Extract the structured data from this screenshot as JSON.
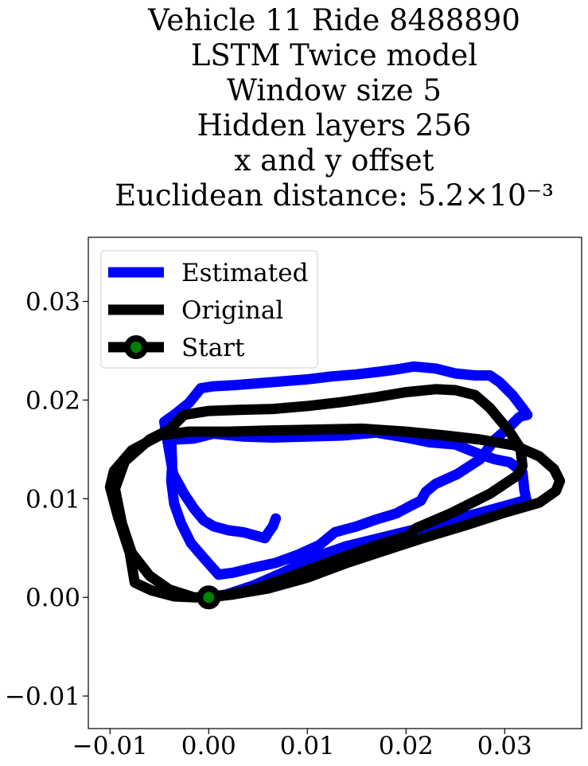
{
  "chart_data": {
    "type": "line",
    "title_lines": [
      "Vehicle 11 Ride 8488890",
      "LSTM Twice model",
      "Window size 5",
      "Hidden layers 256",
      "x and y offset",
      "Euclidean distance: 5.2×10⁻³"
    ],
    "xlabel": "",
    "ylabel": "",
    "xlim": [
      -0.0122,
      0.0378
    ],
    "ylim": [
      -0.0133,
      0.0365
    ],
    "xticks": [
      -0.01,
      0.0,
      0.01,
      0.02,
      0.03
    ],
    "xtick_labels": [
      "−0.01",
      "0.00",
      "0.01",
      "0.02",
      "0.03"
    ],
    "yticks": [
      -0.01,
      0.0,
      0.01,
      0.02,
      0.03
    ],
    "ytick_labels": [
      "−0.01",
      "0.00",
      "0.01",
      "0.02",
      "0.03"
    ],
    "grid": false,
    "legend_position": "upper-left",
    "series": [
      {
        "name": "Estimated",
        "color": "#0000ff",
        "points": [
          [
            0.0,
            0.0
          ],
          [
            0.0018,
            0.0003
          ],
          [
            0.0045,
            0.0012
          ],
          [
            0.0075,
            0.0025
          ],
          [
            0.0105,
            0.004
          ],
          [
            0.014,
            0.0052
          ],
          [
            0.0185,
            0.0063
          ],
          [
            0.023,
            0.0074
          ],
          [
            0.0272,
            0.0085
          ],
          [
            0.0305,
            0.0094
          ],
          [
            0.0322,
            0.0099
          ],
          [
            0.032,
            0.0108
          ],
          [
            0.0318,
            0.0127
          ],
          [
            0.0305,
            0.0137
          ],
          [
            0.029,
            0.014
          ],
          [
            0.0275,
            0.0145
          ],
          [
            0.025,
            0.0155
          ],
          [
            0.0225,
            0.0157
          ],
          [
            0.02,
            0.0162
          ],
          [
            0.017,
            0.0167
          ],
          [
            0.0135,
            0.0164
          ],
          [
            0.01,
            0.0163
          ],
          [
            0.0065,
            0.0162
          ],
          [
            0.0035,
            0.0163
          ],
          [
            0.0005,
            0.0166
          ],
          [
            -0.0015,
            0.0161
          ],
          [
            -0.0033,
            0.016
          ],
          [
            -0.0038,
            0.0159
          ],
          [
            -0.0037,
            0.0135
          ],
          [
            -0.0038,
            0.0118
          ],
          [
            -0.0035,
            0.0095
          ],
          [
            -0.0028,
            0.0075
          ],
          [
            -0.0018,
            0.0055
          ],
          [
            -0.0005,
            0.004
          ],
          [
            0.001,
            0.0023
          ],
          [
            0.0025,
            0.0025
          ],
          [
            0.0045,
            0.003
          ],
          [
            0.0068,
            0.0035
          ],
          [
            0.009,
            0.0043
          ],
          [
            0.0112,
            0.0053
          ],
          [
            0.0128,
            0.0066
          ],
          [
            0.015,
            0.0072
          ],
          [
            0.017,
            0.0079
          ],
          [
            0.019,
            0.0085
          ],
          [
            0.0205,
            0.0093
          ],
          [
            0.0215,
            0.0098
          ],
          [
            0.022,
            0.0107
          ],
          [
            0.023,
            0.0115
          ],
          [
            0.0252,
            0.0125
          ],
          [
            0.0275,
            0.014
          ],
          [
            0.029,
            0.016
          ],
          [
            0.0305,
            0.0173
          ],
          [
            0.0315,
            0.0183
          ],
          [
            0.0323,
            0.0185
          ],
          [
            0.0318,
            0.0192
          ],
          [
            0.0308,
            0.0205
          ],
          [
            0.0295,
            0.0218
          ],
          [
            0.0285,
            0.0225
          ],
          [
            0.027,
            0.0225
          ],
          [
            0.025,
            0.0227
          ],
          [
            0.023,
            0.0232
          ],
          [
            0.0208,
            0.0234
          ],
          [
            0.019,
            0.0231
          ],
          [
            0.0175,
            0.0229
          ],
          [
            0.015,
            0.0226
          ],
          [
            0.0125,
            0.0224
          ],
          [
            0.01,
            0.0221
          ],
          [
            0.0075,
            0.0219
          ],
          [
            0.005,
            0.0217
          ],
          [
            0.0025,
            0.0215
          ],
          [
            0.0005,
            0.0214
          ],
          [
            -0.0008,
            0.0212
          ],
          [
            -0.002,
            0.0197
          ],
          [
            -0.0035,
            0.0185
          ],
          [
            -0.0045,
            0.0178
          ],
          [
            -0.0042,
            0.016
          ],
          [
            -0.0036,
            0.0125
          ],
          [
            -0.0025,
            0.0105
          ],
          [
            -0.0015,
            0.009
          ],
          [
            -0.0005,
            0.0078
          ],
          [
            0.0005,
            0.0072
          ],
          [
            0.002,
            0.0068
          ],
          [
            0.0035,
            0.0066
          ],
          [
            0.0057,
            0.006
          ],
          [
            0.006,
            0.0065
          ],
          [
            0.0065,
            0.0072
          ],
          [
            0.0068,
            0.008
          ]
        ]
      },
      {
        "name": "Original",
        "color": "#000000",
        "points": [
          [
            0.0,
            0.0
          ],
          [
            0.0025,
            0.0003
          ],
          [
            0.006,
            0.0009
          ],
          [
            0.01,
            0.002
          ],
          [
            0.014,
            0.0035
          ],
          [
            0.018,
            0.0048
          ],
          [
            0.022,
            0.0061
          ],
          [
            0.026,
            0.0073
          ],
          [
            0.03,
            0.0086
          ],
          [
            0.0335,
            0.0096
          ],
          [
            0.0352,
            0.0108
          ],
          [
            0.0356,
            0.0118
          ],
          [
            0.035,
            0.013
          ],
          [
            0.0335,
            0.0143
          ],
          [
            0.031,
            0.0154
          ],
          [
            0.0275,
            0.016
          ],
          [
            0.024,
            0.0164
          ],
          [
            0.02,
            0.0168
          ],
          [
            0.0155,
            0.0171
          ],
          [
            0.0105,
            0.017
          ],
          [
            0.006,
            0.0169
          ],
          [
            0.002,
            0.0168
          ],
          [
            -0.002,
            0.0168
          ],
          [
            -0.005,
            0.0164
          ],
          [
            -0.0078,
            0.0149
          ],
          [
            -0.0096,
            0.0128
          ],
          [
            -0.01,
            0.0112
          ],
          [
            -0.0092,
            0.0082
          ],
          [
            -0.008,
            0.0045
          ],
          [
            -0.0075,
            0.0015
          ],
          [
            -0.0058,
            0.0007
          ],
          [
            -0.0035,
            0.0001
          ],
          [
            -0.0013,
            0.0
          ],
          [
            0.0015,
            0.0002
          ],
          [
            0.0045,
            0.0008
          ],
          [
            0.0085,
            0.0022
          ],
          [
            0.0125,
            0.0037
          ],
          [
            0.0165,
            0.0051
          ],
          [
            0.0203,
            0.0063
          ],
          [
            0.021,
            0.007
          ],
          [
            0.0245,
            0.0085
          ],
          [
            0.0285,
            0.0105
          ],
          [
            0.0312,
            0.0123
          ],
          [
            0.0318,
            0.0133
          ],
          [
            0.0316,
            0.0151
          ],
          [
            0.0305,
            0.0168
          ],
          [
            0.0285,
            0.0192
          ],
          [
            0.027,
            0.0205
          ],
          [
            0.025,
            0.021
          ],
          [
            0.023,
            0.0211
          ],
          [
            0.02,
            0.0208
          ],
          [
            0.017,
            0.0203
          ],
          [
            0.0135,
            0.0198
          ],
          [
            0.01,
            0.0194
          ],
          [
            0.0065,
            0.0191
          ],
          [
            0.003,
            0.019
          ],
          [
            0.0,
            0.0189
          ],
          [
            -0.0025,
            0.0185
          ],
          [
            -0.004,
            0.017
          ],
          [
            -0.006,
            0.016
          ],
          [
            -0.0085,
            0.0138
          ],
          [
            -0.0095,
            0.011
          ],
          [
            -0.0088,
            0.0075
          ],
          [
            -0.0078,
            0.0045
          ],
          [
            -0.006,
            0.0022
          ],
          [
            -0.004,
            0.0008
          ],
          [
            -0.0015,
            0.0
          ]
        ]
      }
    ],
    "start_marker": {
      "name": "Start",
      "x": 0.0,
      "y": 0.0,
      "face_color": "#008000",
      "edge_color": "#000000"
    }
  }
}
